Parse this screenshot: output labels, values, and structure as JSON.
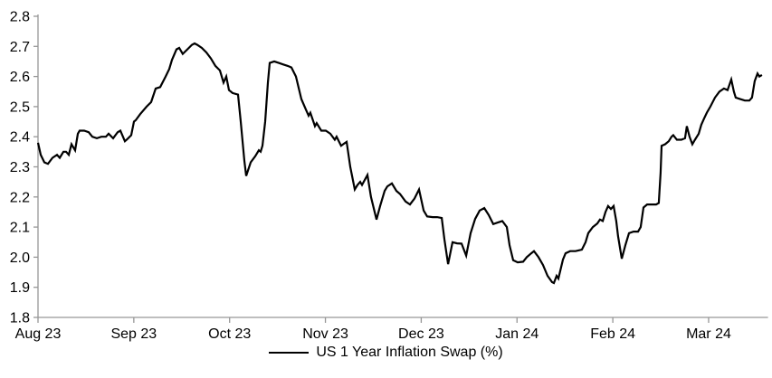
{
  "chart_data": {
    "type": "line",
    "title": "",
    "xlabel": "",
    "ylabel": "",
    "grid": false,
    "legend_position": "bottom-center",
    "x_axis": {
      "unit": "months since Aug 23 tick",
      "tick_positions": [
        0,
        1,
        2,
        3,
        4,
        5,
        6,
        7
      ],
      "tick_labels": [
        "Aug 23",
        "Sep 23",
        "Oct 23",
        "Nov 23",
        "Dec 23",
        "Jan 24",
        "Feb 24",
        "Mar 24"
      ],
      "xlim": [
        0,
        7.62
      ]
    },
    "y_axis": {
      "tick_positions": [
        1.8,
        1.9,
        2.0,
        2.1,
        2.2,
        2.3,
        2.4,
        2.5,
        2.6,
        2.7,
        2.8
      ],
      "tick_labels": [
        "1.8",
        "1.9",
        "2.0",
        "2.1",
        "2.2",
        "2.3",
        "2.4",
        "2.5",
        "2.6",
        "2.7",
        "2.8"
      ],
      "ylim": [
        1.8,
        2.8
      ]
    },
    "colors": {
      "axis": "#969696",
      "text": "#000000",
      "background": "#FFFFFF",
      "series": "#000000"
    },
    "series": [
      {
        "name": "US 1 Year Inflation Swap (%)",
        "color": "#000000",
        "points": [
          [
            0.0,
            2.38
          ],
          [
            0.028,
            2.34
          ],
          [
            0.066,
            2.315
          ],
          [
            0.104,
            2.31
          ],
          [
            0.151,
            2.33
          ],
          [
            0.198,
            2.34
          ],
          [
            0.227,
            2.33
          ],
          [
            0.265,
            2.35
          ],
          [
            0.293,
            2.35
          ],
          [
            0.321,
            2.34
          ],
          [
            0.35,
            2.375
          ],
          [
            0.387,
            2.355
          ],
          [
            0.416,
            2.41
          ],
          [
            0.435,
            2.42
          ],
          [
            0.482,
            2.42
          ],
          [
            0.529,
            2.415
          ],
          [
            0.567,
            2.4
          ],
          [
            0.614,
            2.395
          ],
          [
            0.661,
            2.4
          ],
          [
            0.709,
            2.4
          ],
          [
            0.737,
            2.41
          ],
          [
            0.784,
            2.395
          ],
          [
            0.831,
            2.415
          ],
          [
            0.86,
            2.42
          ],
          [
            0.907,
            2.385
          ],
          [
            0.926,
            2.39
          ],
          [
            0.973,
            2.405
          ],
          [
            1.001,
            2.45
          ],
          [
            1.02,
            2.455
          ],
          [
            1.067,
            2.475
          ],
          [
            1.134,
            2.5
          ],
          [
            1.181,
            2.515
          ],
          [
            1.228,
            2.56
          ],
          [
            1.275,
            2.565
          ],
          [
            1.332,
            2.6
          ],
          [
            1.37,
            2.625
          ],
          [
            1.398,
            2.655
          ],
          [
            1.445,
            2.69
          ],
          [
            1.474,
            2.695
          ],
          [
            1.511,
            2.675
          ],
          [
            1.559,
            2.69
          ],
          [
            1.606,
            2.705
          ],
          [
            1.634,
            2.71
          ],
          [
            1.663,
            2.705
          ],
          [
            1.71,
            2.695
          ],
          [
            1.757,
            2.68
          ],
          [
            1.804,
            2.66
          ],
          [
            1.852,
            2.635
          ],
          [
            1.899,
            2.62
          ],
          [
            1.937,
            2.58
          ],
          [
            1.965,
            2.6
          ],
          [
            1.993,
            2.555
          ],
          [
            2.031,
            2.545
          ],
          [
            2.088,
            2.54
          ],
          [
            2.116,
            2.45
          ],
          [
            2.154,
            2.32
          ],
          [
            2.173,
            2.27
          ],
          [
            2.22,
            2.315
          ],
          [
            2.267,
            2.335
          ],
          [
            2.305,
            2.355
          ],
          [
            2.324,
            2.35
          ],
          [
            2.343,
            2.37
          ],
          [
            2.371,
            2.45
          ],
          [
            2.4,
            2.58
          ],
          [
            2.418,
            2.645
          ],
          [
            2.466,
            2.65
          ],
          [
            2.513,
            2.645
          ],
          [
            2.56,
            2.64
          ],
          [
            2.607,
            2.635
          ],
          [
            2.645,
            2.63
          ],
          [
            2.692,
            2.6
          ],
          [
            2.749,
            2.525
          ],
          [
            2.796,
            2.49
          ],
          [
            2.825,
            2.47
          ],
          [
            2.843,
            2.48
          ],
          [
            2.891,
            2.435
          ],
          [
            2.909,
            2.445
          ],
          [
            2.957,
            2.42
          ],
          [
            3.004,
            2.42
          ],
          [
            3.051,
            2.41
          ],
          [
            3.098,
            2.39
          ],
          [
            3.117,
            2.4
          ],
          [
            3.164,
            2.37
          ],
          [
            3.193,
            2.377
          ],
          [
            3.221,
            2.383
          ],
          [
            3.259,
            2.3
          ],
          [
            3.306,
            2.225
          ],
          [
            3.335,
            2.24
          ],
          [
            3.363,
            2.25
          ],
          [
            3.382,
            2.24
          ],
          [
            3.439,
            2.273
          ],
          [
            3.476,
            2.2
          ],
          [
            3.533,
            2.125
          ],
          [
            3.571,
            2.17
          ],
          [
            3.618,
            2.22
          ],
          [
            3.647,
            2.235
          ],
          [
            3.694,
            2.245
          ],
          [
            3.741,
            2.22
          ],
          [
            3.779,
            2.21
          ],
          [
            3.836,
            2.185
          ],
          [
            3.883,
            2.175
          ],
          [
            3.93,
            2.195
          ],
          [
            3.977,
            2.225
          ],
          [
            4.025,
            2.155
          ],
          [
            4.062,
            2.135
          ],
          [
            4.119,
            2.133
          ],
          [
            4.166,
            2.133
          ],
          [
            4.214,
            2.13
          ],
          [
            4.242,
            2.06
          ],
          [
            4.28,
            1.977
          ],
          [
            4.327,
            2.05
          ],
          [
            4.374,
            2.046
          ],
          [
            4.421,
            2.045
          ],
          [
            4.469,
            2.005
          ],
          [
            4.516,
            2.08
          ],
          [
            4.563,
            2.127
          ],
          [
            4.61,
            2.155
          ],
          [
            4.658,
            2.163
          ],
          [
            4.705,
            2.14
          ],
          [
            4.752,
            2.11
          ],
          [
            4.799,
            2.115
          ],
          [
            4.846,
            2.12
          ],
          [
            4.894,
            2.1
          ],
          [
            4.922,
            2.04
          ],
          [
            4.96,
            1.99
          ],
          [
            5.007,
            1.983
          ],
          [
            5.064,
            1.985
          ],
          [
            5.101,
            2.0
          ],
          [
            5.149,
            2.013
          ],
          [
            5.177,
            2.02
          ],
          [
            5.224,
            2.0
          ],
          [
            5.271,
            1.974
          ],
          [
            5.319,
            1.938
          ],
          [
            5.366,
            1.917
          ],
          [
            5.385,
            1.914
          ],
          [
            5.413,
            1.938
          ],
          [
            5.432,
            1.929
          ],
          [
            5.479,
            1.992
          ],
          [
            5.507,
            2.013
          ],
          [
            5.555,
            2.02
          ],
          [
            5.611,
            2.02
          ],
          [
            5.677,
            2.025
          ],
          [
            5.715,
            2.05
          ],
          [
            5.744,
            2.08
          ],
          [
            5.791,
            2.1
          ],
          [
            5.838,
            2.112
          ],
          [
            5.866,
            2.125
          ],
          [
            5.895,
            2.12
          ],
          [
            5.923,
            2.15
          ],
          [
            5.951,
            2.17
          ],
          [
            5.98,
            2.16
          ],
          [
            6.008,
            2.17
          ],
          [
            6.036,
            2.12
          ],
          [
            6.055,
            2.07
          ],
          [
            6.093,
            1.995
          ],
          [
            6.131,
            2.04
          ],
          [
            6.169,
            2.08
          ],
          [
            6.216,
            2.085
          ],
          [
            6.263,
            2.085
          ],
          [
            6.291,
            2.1
          ],
          [
            6.32,
            2.165
          ],
          [
            6.358,
            2.175
          ],
          [
            6.405,
            2.175
          ],
          [
            6.452,
            2.175
          ],
          [
            6.48,
            2.18
          ],
          [
            6.499,
            2.28
          ],
          [
            6.509,
            2.37
          ],
          [
            6.546,
            2.375
          ],
          [
            6.584,
            2.385
          ],
          [
            6.613,
            2.4
          ],
          [
            6.631,
            2.405
          ],
          [
            6.669,
            2.39
          ],
          [
            6.716,
            2.39
          ],
          [
            6.754,
            2.395
          ],
          [
            6.773,
            2.435
          ],
          [
            6.801,
            2.4
          ],
          [
            6.83,
            2.375
          ],
          [
            6.858,
            2.39
          ],
          [
            6.896,
            2.41
          ],
          [
            6.924,
            2.44
          ],
          [
            6.952,
            2.46
          ],
          [
            6.981,
            2.48
          ],
          [
            7.018,
            2.5
          ],
          [
            7.066,
            2.53
          ],
          [
            7.113,
            2.55
          ],
          [
            7.16,
            2.56
          ],
          [
            7.198,
            2.555
          ],
          [
            7.236,
            2.59
          ],
          [
            7.264,
            2.55
          ],
          [
            7.283,
            2.53
          ],
          [
            7.33,
            2.525
          ],
          [
            7.378,
            2.52
          ],
          [
            7.425,
            2.52
          ],
          [
            7.453,
            2.53
          ],
          [
            7.481,
            2.585
          ],
          [
            7.51,
            2.61
          ],
          [
            7.529,
            2.6
          ],
          [
            7.557,
            2.605
          ]
        ]
      }
    ]
  },
  "legend": {
    "label": "US 1 Year Inflation Swap (%)"
  }
}
